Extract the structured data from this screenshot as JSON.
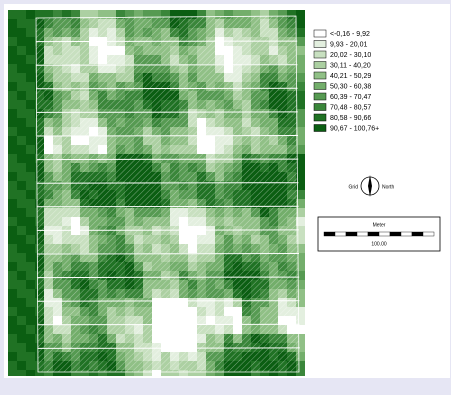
{
  "legend": [
    {
      "label": "<-0,16 - 9,92",
      "color": "#ffffff"
    },
    {
      "label": "9,93 - 20,01",
      "color": "#e3efdf"
    },
    {
      "label": "20,02 - 30,10",
      "color": "#c8e0c0"
    },
    {
      "label": "30,11 - 40,20",
      "color": "#acd0a2"
    },
    {
      "label": "40,21 - 50,29",
      "color": "#90c086"
    },
    {
      "label": "50,30 - 60,38",
      "color": "#73ae6b"
    },
    {
      "label": "60,39 - 70,47",
      "color": "#569a52"
    },
    {
      "label": "70,48 - 80,57",
      "color": "#3a863a"
    },
    {
      "label": "80,58 - 90,66",
      "color": "#207224"
    },
    {
      "label": "90,67 - 100,76+",
      "color": "#0b5e12"
    }
  ],
  "north_arrow": {
    "left": "Grid",
    "right": "North"
  },
  "scale_bar": {
    "unit": "Meter",
    "length": "100.00"
  }
}
